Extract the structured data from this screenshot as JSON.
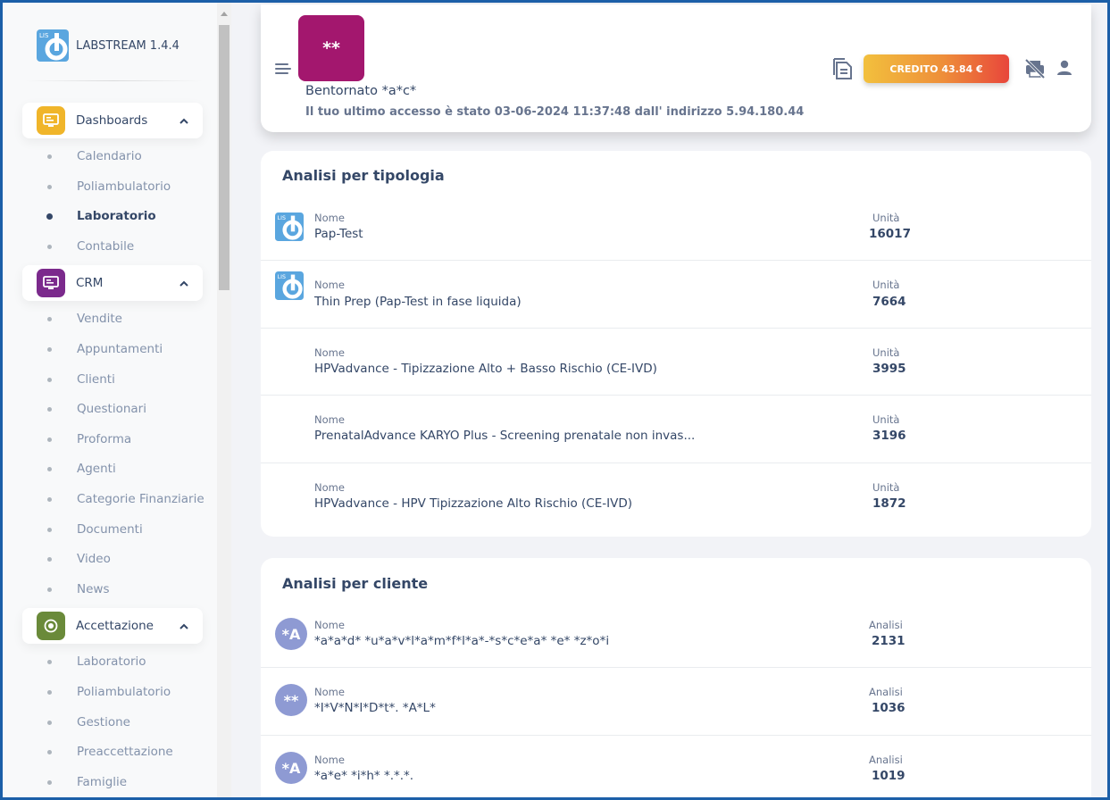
{
  "app": {
    "name": "LABSTREAM 1.4.4"
  },
  "sidebar": {
    "sections": [
      {
        "label": "Dashboards",
        "icon": "monitor-icon",
        "color": "#f0b52a",
        "items": [
          {
            "label": "Calendario",
            "active": false
          },
          {
            "label": "Poliambulatorio",
            "active": false
          },
          {
            "label": "Laboratorio",
            "active": true
          },
          {
            "label": "Contabile",
            "active": false
          }
        ]
      },
      {
        "label": "CRM",
        "icon": "monitor-icon",
        "color": "#7b2a8c",
        "items": [
          {
            "label": "Vendite"
          },
          {
            "label": "Appuntamenti"
          },
          {
            "label": "Clienti"
          },
          {
            "label": "Questionari"
          },
          {
            "label": "Proforma"
          },
          {
            "label": "Agenti"
          },
          {
            "label": "Categorie Finanziarie"
          },
          {
            "label": "Documenti"
          },
          {
            "label": "Video"
          },
          {
            "label": "News"
          }
        ]
      },
      {
        "label": "Accettazione",
        "icon": "target-icon",
        "color": "#6a8a3a",
        "items": [
          {
            "label": "Laboratorio"
          },
          {
            "label": "Poliambulatorio"
          },
          {
            "label": "Gestione"
          },
          {
            "label": "Preaccettazione"
          },
          {
            "label": "Famiglie"
          }
        ]
      }
    ]
  },
  "header": {
    "avatar_text": "**",
    "avatar_color": "#a3176e",
    "welcome": "Bentornato *a*c*",
    "last_access": "Il tuo ultimo accesso è stato 03-06-2024 11:37:48 dall' indirizzo 5.94.180.44",
    "credit_label": "CREDITO 43.84 €"
  },
  "tipologia": {
    "title": "Analisi per tipologia",
    "name_caption": "Nome",
    "value_caption": "Unità",
    "rows": [
      {
        "name": "Pap-Test",
        "value": "16017",
        "logo": true
      },
      {
        "name": "Thin Prep (Pap-Test in fase liquida)",
        "value": "7664",
        "logo": true
      },
      {
        "name": "HPVadvance - Tipizzazione Alto + Basso Rischio (CE-IVD)",
        "value": "3995",
        "logo": false
      },
      {
        "name": "PrenatalAdvance KARYO Plus - Screening prenatale non invas...",
        "value": "3196",
        "logo": false
      },
      {
        "name": "HPVadvance - HPV Tipizzazione Alto Rischio (CE-IVD)",
        "value": "1872",
        "logo": false
      }
    ]
  },
  "cliente": {
    "title": "Analisi per cliente",
    "name_caption": "Nome",
    "value_caption": "Analisi",
    "rows": [
      {
        "avatar": "*A",
        "name": "*a*a*d* *u*a*v*l*a*m*f*l*a*-*s*c*e*a* *e* *z*o*i",
        "value": "2131"
      },
      {
        "avatar": "**",
        "name": "*I*V*N*I*D*t*. *A*L*",
        "value": "1036"
      },
      {
        "avatar": "*A",
        "name": "*a*e* *i*h* *.*.*.",
        "value": "1019"
      }
    ]
  }
}
